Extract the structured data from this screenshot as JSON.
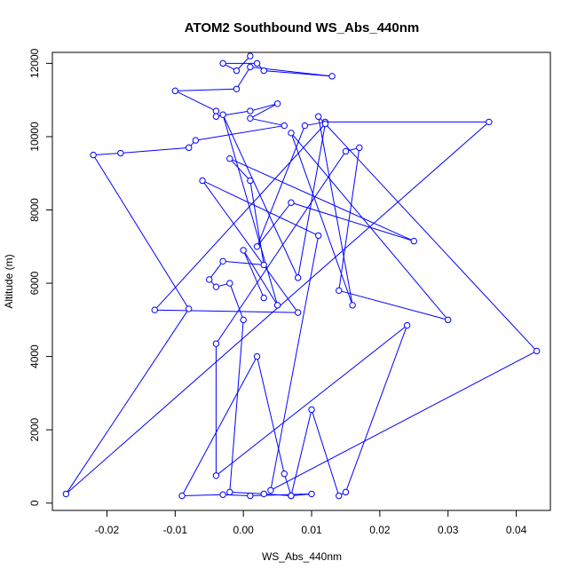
{
  "chart_data": {
    "type": "line",
    "title": "ATOM2 Southbound WS_Abs_440nm",
    "xlabel": "WS_Abs_440nm",
    "ylabel": "Altitude (m)",
    "xlim": [
      -0.028,
      0.045
    ],
    "ylim": [
      -200,
      12300
    ],
    "x_ticks": [
      -0.02,
      -0.01,
      0.0,
      0.01,
      0.02,
      0.03,
      0.04
    ],
    "x_tick_labels": [
      "-0.02",
      "-0.01",
      "0.00",
      "0.01",
      "0.02",
      "0.03",
      "0.04"
    ],
    "y_ticks": [
      0,
      2000,
      4000,
      6000,
      8000,
      10000,
      12000
    ],
    "y_tick_labels": [
      "0",
      "2000",
      "4000",
      "6000",
      "8000",
      "10000",
      "12000"
    ],
    "grid": false,
    "marker": "open-circle",
    "series": [
      {
        "color": "#0000ff",
        "points": [
          [
            0.001,
            12200
          ],
          [
            -0.001,
            11800
          ],
          [
            -0.003,
            12000
          ],
          [
            0.002,
            12000
          ],
          [
            0.003,
            11800
          ],
          [
            0.013,
            11650
          ],
          [
            0.001,
            11900
          ],
          [
            -0.001,
            11300
          ],
          [
            -0.01,
            11250
          ],
          [
            -0.004,
            10700
          ],
          [
            -0.004,
            10550
          ],
          [
            0.001,
            10700
          ],
          [
            0.005,
            10900
          ],
          [
            0.001,
            10500
          ],
          [
            0.006,
            10300
          ],
          [
            -0.007,
            9900
          ],
          [
            -0.008,
            9700
          ],
          [
            -0.018,
            9550
          ],
          [
            -0.022,
            9500
          ],
          [
            -0.008,
            5300
          ],
          [
            -0.026,
            250
          ],
          [
            0.036,
            10400
          ],
          [
            0.012,
            10400
          ],
          [
            0.009,
            10300
          ],
          [
            0.002,
            7000
          ],
          [
            0.007,
            8200
          ],
          [
            0.025,
            7150
          ],
          [
            -0.002,
            9400
          ],
          [
            0.001,
            8800
          ],
          [
            0.003,
            6500
          ],
          [
            -0.003,
            6600
          ],
          [
            -0.005,
            6100
          ],
          [
            -0.004,
            5900
          ],
          [
            -0.002,
            6000
          ],
          [
            0.0,
            5000
          ],
          [
            -0.002,
            300
          ],
          [
            0.003,
            250
          ],
          [
            0.007,
            200
          ],
          [
            0.01,
            250
          ],
          [
            0.001,
            200
          ],
          [
            -0.003,
            230
          ],
          [
            -0.009,
            200
          ],
          [
            0.002,
            4000
          ],
          [
            0.006,
            800
          ],
          [
            0.007,
            200
          ],
          [
            0.01,
            2550
          ],
          [
            0.014,
            200
          ],
          [
            0.015,
            300
          ],
          [
            0.024,
            4850
          ],
          [
            -0.004,
            750
          ],
          [
            -0.004,
            4350
          ],
          [
            0.015,
            9600
          ],
          [
            0.017,
            9700
          ],
          [
            0.014,
            5800
          ],
          [
            0.03,
            5000
          ],
          [
            0.007,
            10100
          ],
          [
            0.016,
            5400
          ],
          [
            0.011,
            10550
          ],
          [
            0.043,
            4150
          ],
          [
            0.004,
            350
          ],
          [
            0.011,
            7300
          ],
          [
            -0.006,
            8800
          ],
          [
            0.008,
            5200
          ],
          [
            -0.013,
            5270
          ],
          [
            0.012,
            10350
          ],
          [
            0.008,
            6150
          ],
          [
            -0.003,
            10600
          ],
          [
            0.005,
            5400
          ],
          [
            0.0,
            6900
          ],
          [
            0.003,
            5600
          ]
        ]
      }
    ]
  }
}
